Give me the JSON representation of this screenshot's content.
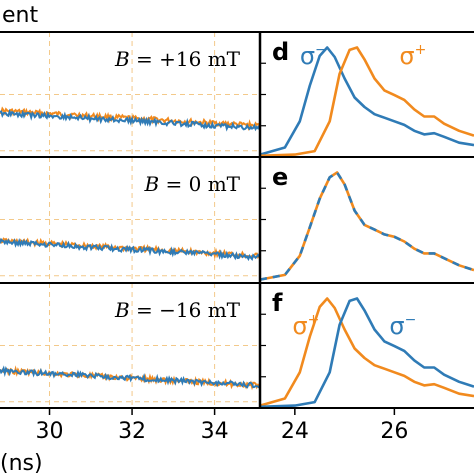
{
  "header_fragment": "ent",
  "xaxis_label_fragment": "(ns)",
  "colors": {
    "blue": "#2f7bb6",
    "orange": "#f18a1e",
    "grid": "#f3c98a"
  },
  "chart_data": [
    {
      "type": "line",
      "panels": [
        {
          "label": "B = +16 mT",
          "label_parts": [
            "B",
            " = +16 mT"
          ],
          "y_level_blue": 0.35,
          "y_level_orange": 0.37
        },
        {
          "label": "B = 0 mT",
          "label_parts": [
            "B",
            " = 0 mT"
          ],
          "y_level_blue": 0.32,
          "y_level_orange": 0.33
        },
        {
          "label": "B = −16 mT",
          "label_parts": [
            "B",
            " = −16 mT"
          ],
          "y_level_blue": 0.3,
          "y_level_orange": 0.3
        }
      ],
      "x_ticks": [
        "30",
        "32",
        "34"
      ],
      "x_tick_values": [
        30,
        32,
        34
      ],
      "xlim": [
        28.8,
        35.1
      ],
      "series": [
        {
          "color": "blue"
        },
        {
          "color": "orange"
        }
      ],
      "grid": true
    },
    {
      "type": "line",
      "x_ticks": [
        "24",
        "26"
      ],
      "x_tick_values": [
        24,
        26
      ],
      "xlim": [
        23.3,
        27.6
      ],
      "panels": [
        {
          "letter": "d",
          "annotations": [
            {
              "text": "σ",
              "sup": "−",
              "color": "blue",
              "x": 24.1,
              "y": 0.78
            },
            {
              "text": "σ",
              "sup": "+",
              "color": "orange",
              "x": 26.1,
              "y": 0.78
            }
          ],
          "series": [
            {
              "color": "blue",
              "x": [
                23.3,
                23.8,
                24.1,
                24.3,
                24.5,
                24.65,
                24.8,
                25.0,
                25.2,
                25.4,
                25.6,
                25.8,
                26.0,
                26.2,
                26.4,
                26.6,
                26.8,
                27.0,
                27.3,
                27.6
              ],
              "y": [
                0.02,
                0.08,
                0.3,
                0.6,
                0.85,
                0.92,
                0.84,
                0.66,
                0.5,
                0.42,
                0.36,
                0.33,
                0.3,
                0.27,
                0.22,
                0.19,
                0.2,
                0.17,
                0.12,
                0.1
              ]
            },
            {
              "color": "orange",
              "x": [
                23.3,
                24.0,
                24.4,
                24.7,
                24.9,
                25.1,
                25.25,
                25.4,
                25.6,
                25.8,
                26.0,
                26.2,
                26.4,
                26.6,
                26.8,
                27.0,
                27.3,
                27.6
              ],
              "y": [
                0.01,
                0.02,
                0.05,
                0.3,
                0.7,
                0.9,
                0.92,
                0.82,
                0.66,
                0.56,
                0.52,
                0.48,
                0.4,
                0.34,
                0.34,
                0.28,
                0.22,
                0.18
              ]
            }
          ]
        },
        {
          "letter": "e",
          "annotations": [],
          "series": [
            {
              "color": "orange",
              "dashed": false,
              "x": [
                23.3,
                23.8,
                24.1,
                24.3,
                24.5,
                24.7,
                24.85,
                25.0,
                25.2,
                25.4,
                25.6,
                25.8,
                26.0,
                26.2,
                26.4,
                26.6,
                26.8,
                27.0,
                27.3,
                27.6
              ],
              "y": [
                0.02,
                0.06,
                0.22,
                0.46,
                0.7,
                0.88,
                0.92,
                0.82,
                0.6,
                0.48,
                0.44,
                0.4,
                0.38,
                0.34,
                0.28,
                0.24,
                0.24,
                0.2,
                0.14,
                0.1
              ]
            },
            {
              "color": "blue",
              "dashed": true,
              "x": [
                23.3,
                23.8,
                24.1,
                24.3,
                24.5,
                24.7,
                24.85,
                25.0,
                25.2,
                25.4,
                25.6,
                25.8,
                26.0,
                26.2,
                26.4,
                26.6,
                26.8,
                27.0,
                27.3,
                27.6
              ],
              "y": [
                0.02,
                0.06,
                0.22,
                0.46,
                0.7,
                0.88,
                0.92,
                0.82,
                0.6,
                0.48,
                0.44,
                0.4,
                0.38,
                0.34,
                0.28,
                0.24,
                0.24,
                0.2,
                0.14,
                0.1
              ]
            }
          ]
        },
        {
          "letter": "f",
          "annotations": [
            {
              "text": "σ",
              "sup": "+",
              "color": "orange",
              "x": 23.95,
              "y": 0.62
            },
            {
              "text": "σ",
              "sup": "−",
              "color": "blue",
              "x": 25.9,
              "y": 0.62
            }
          ],
          "series": [
            {
              "color": "orange",
              "x": [
                23.3,
                23.8,
                24.1,
                24.3,
                24.5,
                24.65,
                24.8,
                25.0,
                25.2,
                25.4,
                25.6,
                25.8,
                26.0,
                26.2,
                26.4,
                26.6,
                26.8,
                27.0,
                27.3,
                27.6
              ],
              "y": [
                0.02,
                0.08,
                0.3,
                0.6,
                0.85,
                0.92,
                0.84,
                0.66,
                0.5,
                0.42,
                0.36,
                0.33,
                0.3,
                0.27,
                0.22,
                0.19,
                0.2,
                0.17,
                0.12,
                0.1
              ]
            },
            {
              "color": "blue",
              "x": [
                23.3,
                24.0,
                24.4,
                24.7,
                24.9,
                25.1,
                25.25,
                25.4,
                25.6,
                25.8,
                26.0,
                26.2,
                26.4,
                26.6,
                26.8,
                27.0,
                27.3,
                27.6
              ],
              "y": [
                0.01,
                0.02,
                0.05,
                0.3,
                0.7,
                0.9,
                0.92,
                0.82,
                0.66,
                0.56,
                0.52,
                0.48,
                0.4,
                0.34,
                0.34,
                0.28,
                0.22,
                0.18
              ]
            }
          ]
        }
      ]
    }
  ]
}
